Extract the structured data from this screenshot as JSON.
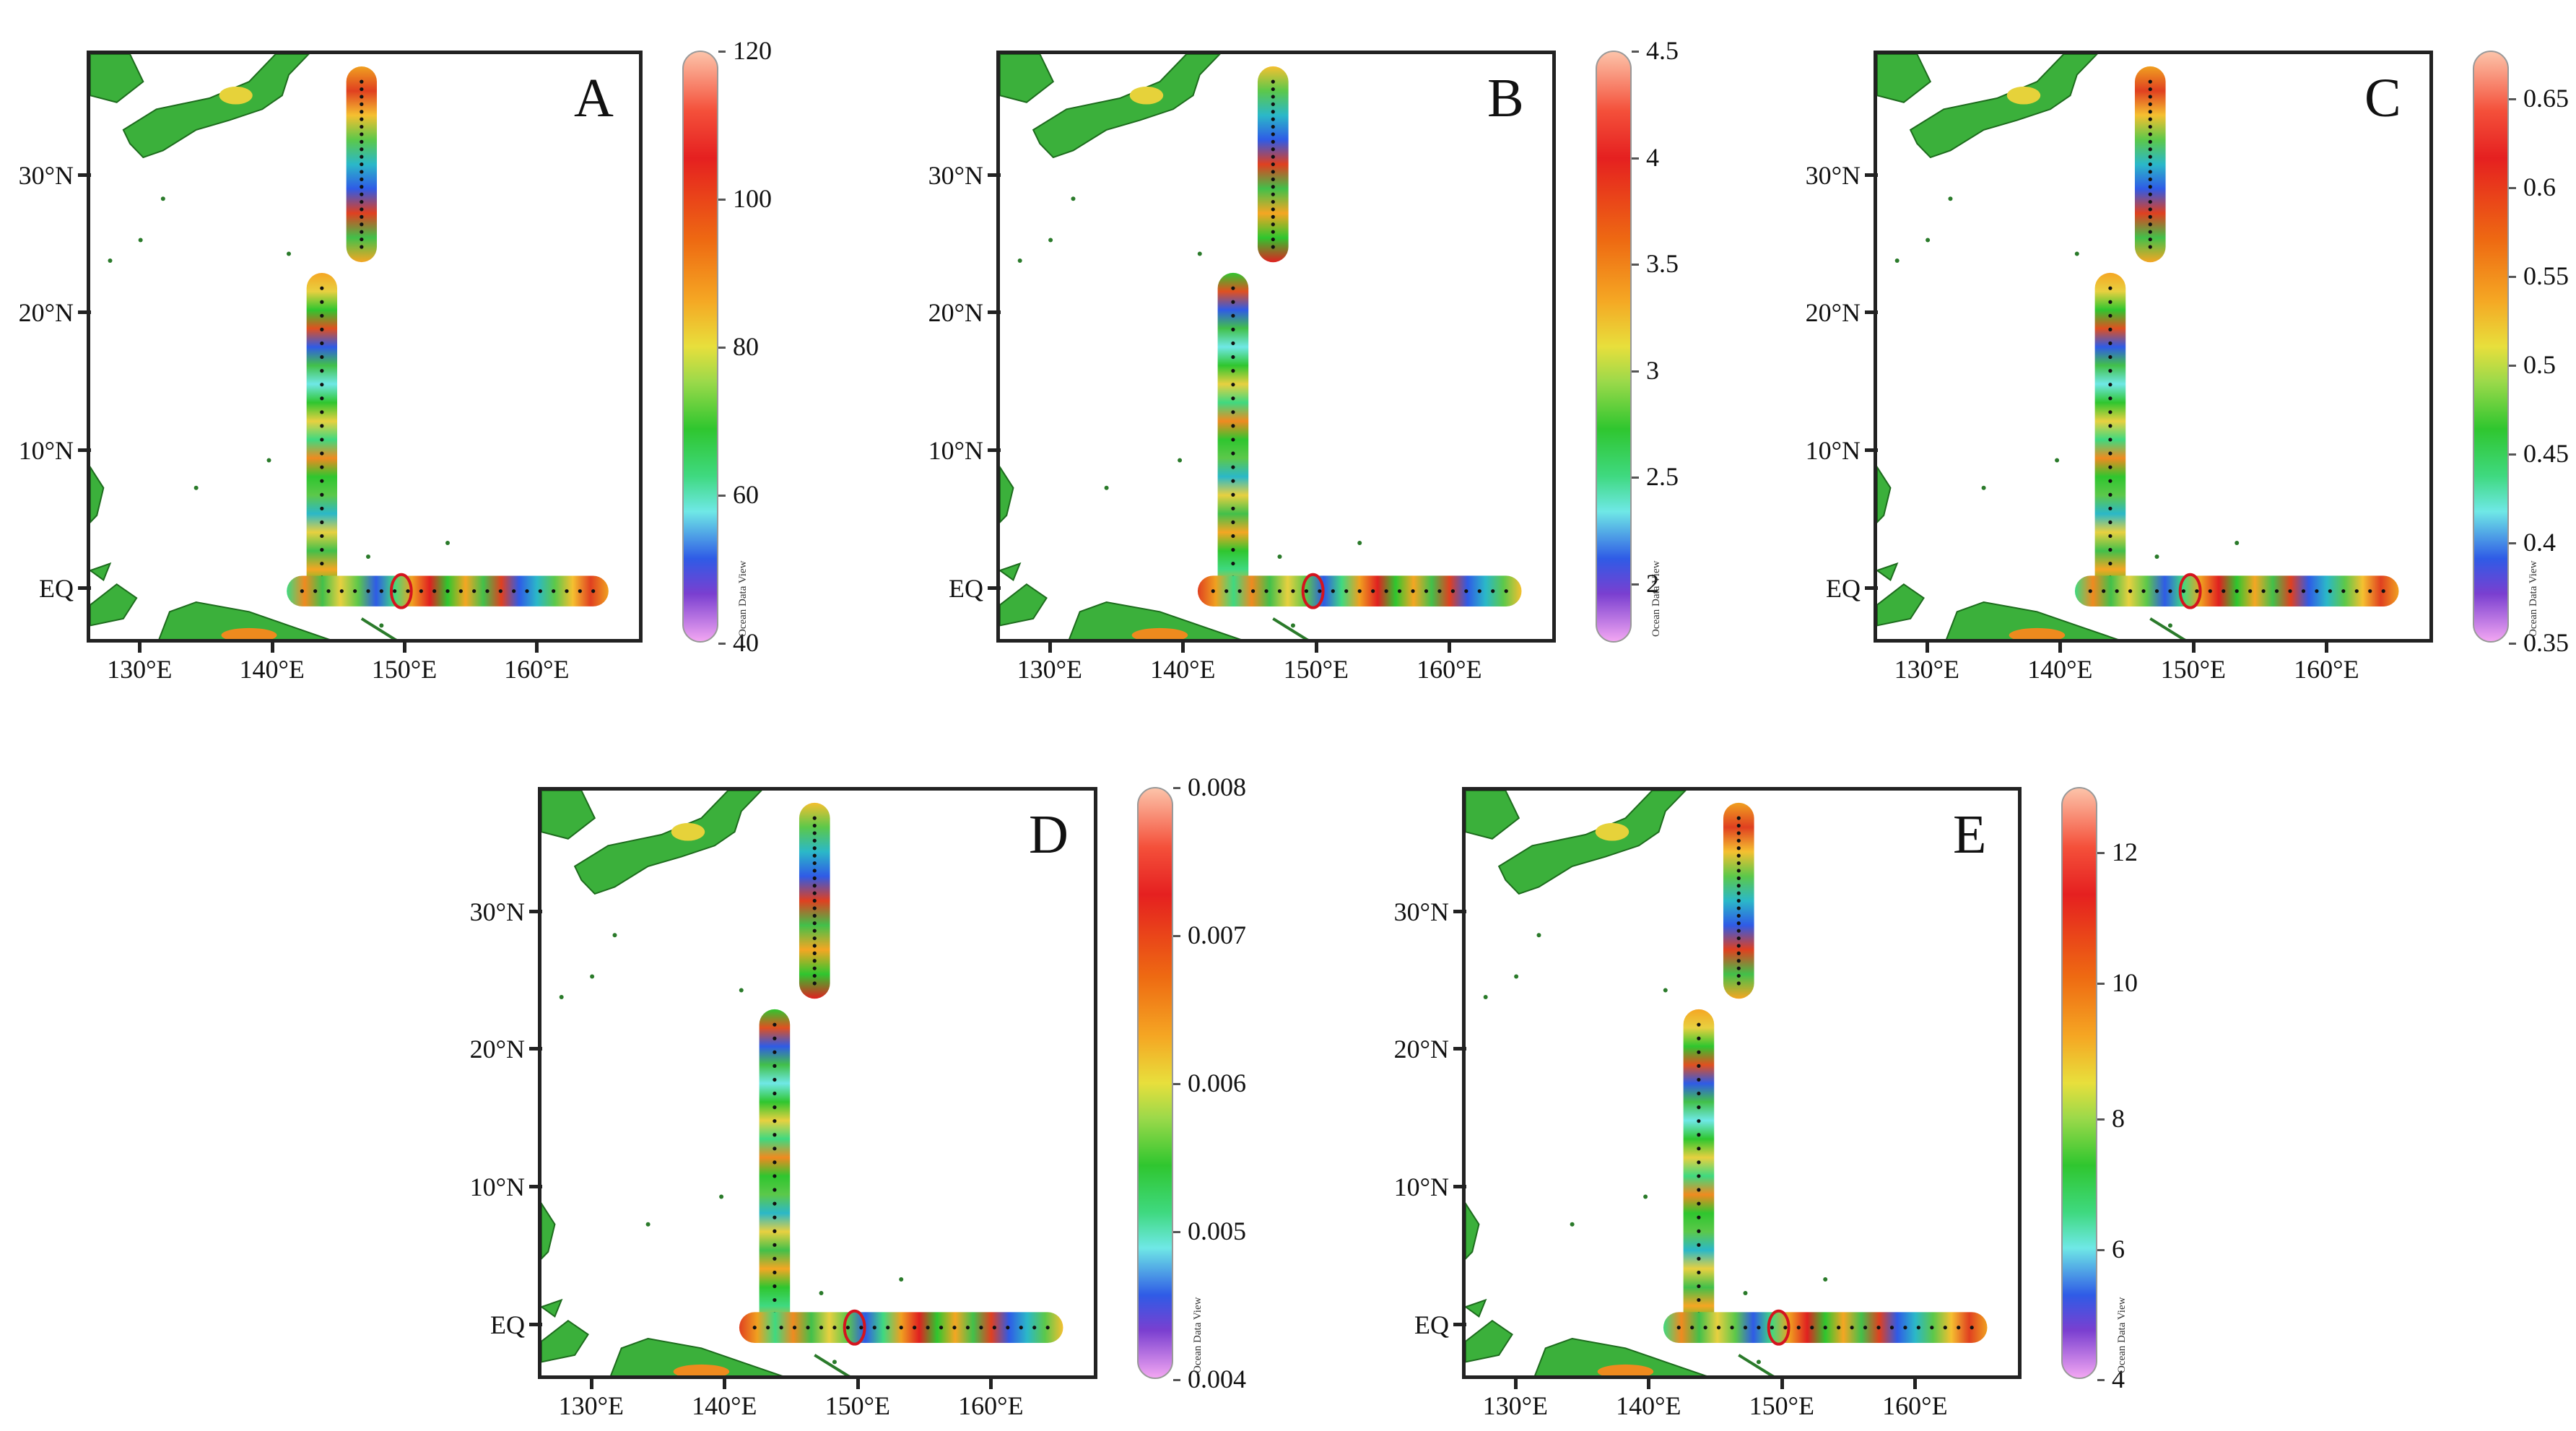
{
  "y_axis_labels": [
    "30°N",
    "20°N",
    "10°N",
    "EQ"
  ],
  "x_axis_labels": [
    "130°E",
    "140°E",
    "150°E",
    "160°E"
  ],
  "watermark": "Ocean Data View",
  "panels": [
    {
      "letter": "A",
      "colorbar_labels": [
        "120",
        "100",
        "80",
        "60",
        "40"
      ]
    },
    {
      "letter": "B",
      "colorbar_labels": [
        "4.5",
        "4",
        "3.5",
        "3",
        "2.5",
        "2"
      ]
    },
    {
      "letter": "C",
      "colorbar_labels": [
        "0.65",
        "0.6",
        "0.55",
        "0.5",
        "0.45",
        "0.4",
        "0.35"
      ]
    },
    {
      "letter": "D",
      "colorbar_labels": [
        "0.008",
        "0.007",
        "0.006",
        "0.005",
        "0.004"
      ]
    },
    {
      "letter": "E",
      "colorbar_labels": [
        "12",
        "10",
        "8",
        "6",
        "4"
      ]
    }
  ],
  "colors": {
    "land_green": "#3bb03b",
    "land_yellow": "#e6d23a",
    "land_orange": "#ee8a1e",
    "highlight_ellipse": "#d4141e",
    "station_dots": "#111111"
  }
}
